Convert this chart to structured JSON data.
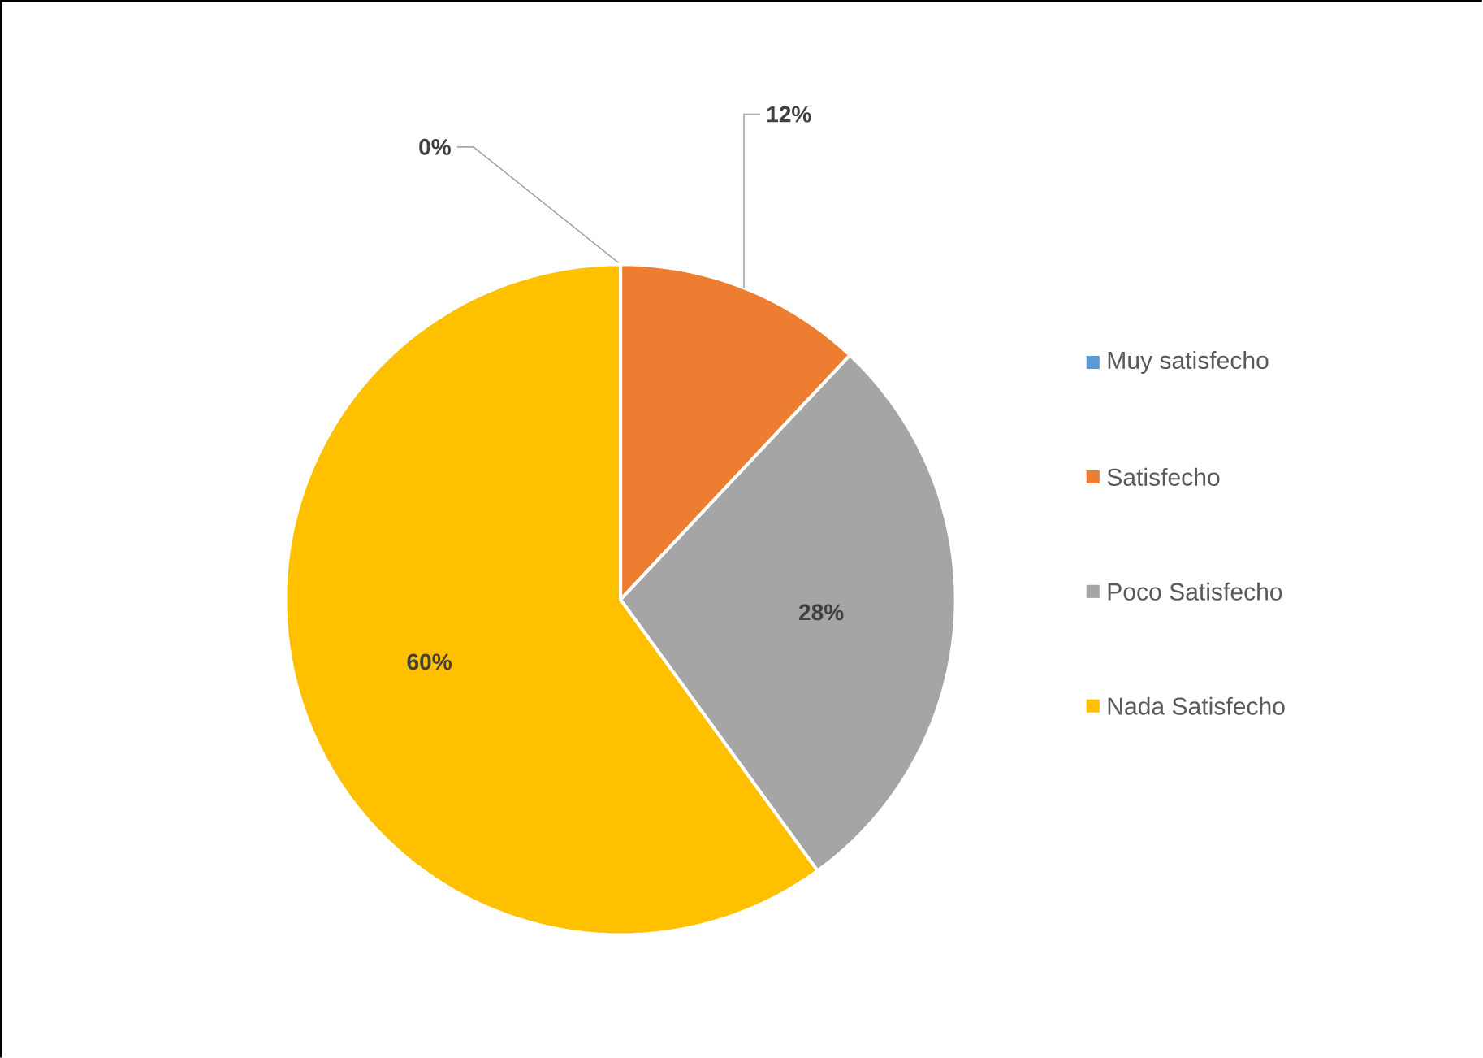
{
  "chart_data": {
    "type": "pie",
    "categories": [
      "Muy satisfecho",
      "Satisfecho",
      "Poco Satisfecho",
      "Nada Satisfecho"
    ],
    "values": [
      0,
      12,
      28,
      60
    ],
    "colors": [
      "#5b9bd5",
      "#ed7d31",
      "#a5a5a5",
      "#ffc000"
    ],
    "value_labels": [
      "0%",
      "12%",
      "28%",
      "60%"
    ],
    "legend": "right"
  }
}
